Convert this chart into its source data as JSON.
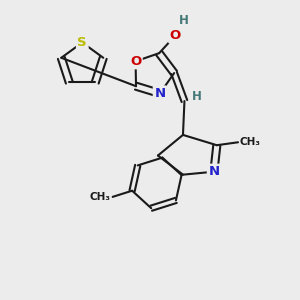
{
  "bg_color": "#ececec",
  "bond_color": "#1a1a1a",
  "bond_width": 1.5,
  "atom_colors": {
    "S": "#bbbb00",
    "O": "#cc0000",
    "N": "#2222cc",
    "H": "#447777",
    "C": "#1a1a1a"
  },
  "font_size": 9.5,
  "fig_size": [
    3.0,
    3.0
  ],
  "dpi": 100
}
